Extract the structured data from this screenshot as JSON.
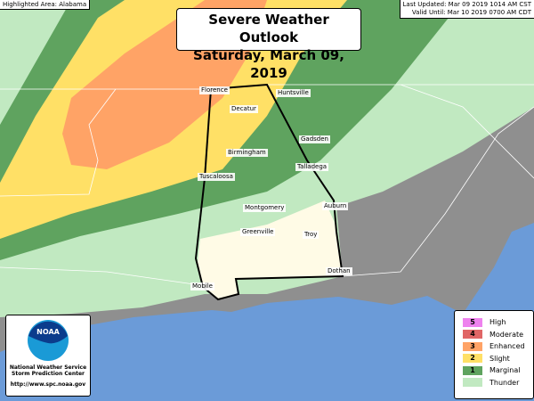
{
  "highlighted": "Highlighted Area: Alabama",
  "last_updated": "Last Updated: Mar 09 2019 1014 AM CST",
  "valid_until": "Valid Until: Mar 10 2019 0700 AM CDT",
  "title_line1": "Severe Weather Outlook",
  "title_line2": "Saturday, March 09, 2019",
  "colors": {
    "high": "#ee82ee",
    "moderate": "#e06666",
    "enhanced": "#ffa366",
    "slight": "#ffe066",
    "marginal": "#5fa35f",
    "thunder": "#c1e9c1",
    "none_land": "#8f8f8f",
    "water": "#6b9bd8",
    "no_thunder_state": "#fffbe6"
  },
  "cities": [
    {
      "name": "Florence"
    },
    {
      "name": "Huntsville"
    },
    {
      "name": "Decatur"
    },
    {
      "name": "Gadsden"
    },
    {
      "name": "Birmingham"
    },
    {
      "name": "Talladega"
    },
    {
      "name": "Tuscaloosa"
    },
    {
      "name": "Montgomery"
    },
    {
      "name": "Auburn"
    },
    {
      "name": "Greenville"
    },
    {
      "name": "Troy"
    },
    {
      "name": "Dothan"
    },
    {
      "name": "Mobile"
    }
  ],
  "logo": {
    "text": "NOAA",
    "org1": "National Weather Service",
    "org2": "Storm Prediction Center",
    "url": "http://www.spc.noaa.gov"
  },
  "legend": [
    {
      "num": "5",
      "label": "High",
      "color": "#ee82ee"
    },
    {
      "num": "4",
      "label": "Moderate",
      "color": "#e06666"
    },
    {
      "num": "3",
      "label": "Enhanced",
      "color": "#ffa366"
    },
    {
      "num": "2",
      "label": "Slight",
      "color": "#ffe066"
    },
    {
      "num": "1",
      "label": "Marginal",
      "color": "#5fa35f"
    },
    {
      "num": "",
      "label": "Thunder",
      "color": "#c1e9c1"
    }
  ]
}
